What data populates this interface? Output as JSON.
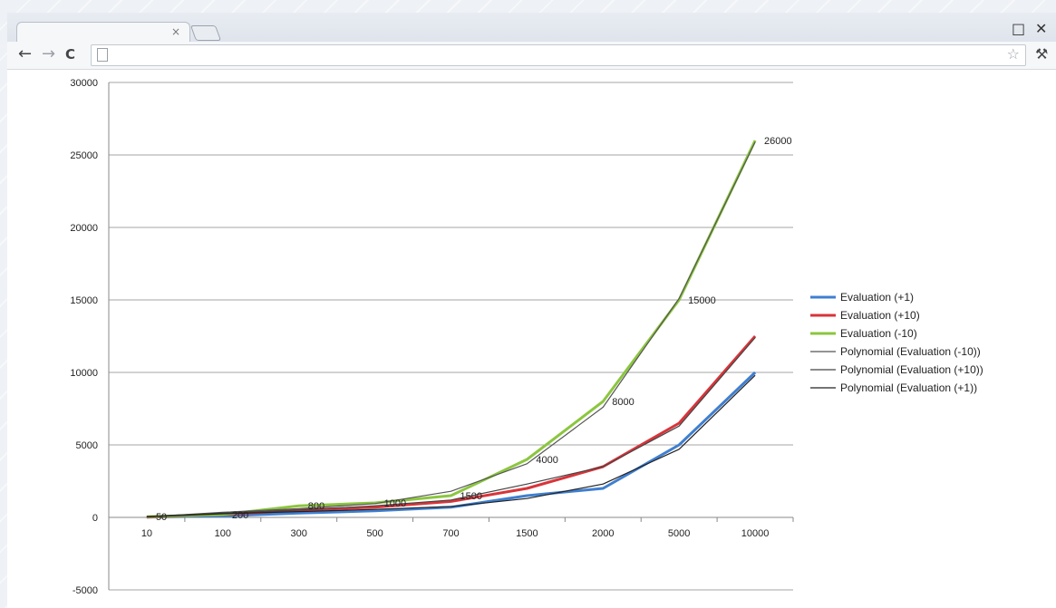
{
  "browser": {
    "tab_close_glyph": "×",
    "back_glyph": "←",
    "forward_glyph": "→",
    "reload_glyph": "C",
    "address_value": "",
    "star_glyph": "☆",
    "wrench_glyph": "⚒",
    "maximize_glyph": "□",
    "close_glyph": "✕",
    "icons": [
      "back-icon",
      "forward-icon",
      "reload-icon",
      "page-icon",
      "star-icon",
      "wrench-icon",
      "maximize-icon",
      "close-icon"
    ]
  },
  "chart_data": {
    "type": "line",
    "title": "",
    "xlabel": "",
    "ylabel": "",
    "categories": [
      "10",
      "100",
      "300",
      "500",
      "700",
      "1500",
      "2000",
      "5000",
      "10000"
    ],
    "ylim": [
      -5000,
      30000
    ],
    "yticks": [
      "-5000",
      "0",
      "5000",
      "10000",
      "15000",
      "20000",
      "25000",
      "30000"
    ],
    "grid": true,
    "legend_position": "right",
    "series": [
      {
        "name": "Evaluation (+1)",
        "color": "#3f7fd0",
        "values": [
          10,
          100,
          300,
          450,
          700,
          1500,
          2000,
          5000,
          10000
        ]
      },
      {
        "name": "Evaluation (+10)",
        "color": "#d8343a",
        "values": [
          20,
          200,
          500,
          700,
          1100,
          2000,
          3500,
          6500,
          12500
        ]
      },
      {
        "name": "Evaluation (-10)",
        "color": "#8cc63f",
        "values": [
          50,
          200,
          800,
          1000,
          1500,
          4000,
          8000,
          15000,
          26000
        ],
        "data_labels": [
          "50",
          "200",
          "800",
          "1000",
          "1500",
          "4000",
          "8000",
          "15000",
          "26000"
        ]
      },
      {
        "name": "Polynomial (Evaluation (-10))",
        "color": "#555555",
        "values": [
          30,
          350,
          600,
          950,
          1800,
          3700,
          7600,
          15100,
          25900
        ]
      },
      {
        "name": "Polynomial (Evaluation (+10))",
        "color": "#444444",
        "values": [
          60,
          300,
          500,
          800,
          1200,
          2300,
          3500,
          6300,
          12400
        ]
      },
      {
        "name": "Polynomial (Evaluation (+1))",
        "color": "#222222",
        "values": [
          40,
          250,
          400,
          550,
          750,
          1300,
          2300,
          4700,
          9800
        ]
      }
    ]
  }
}
